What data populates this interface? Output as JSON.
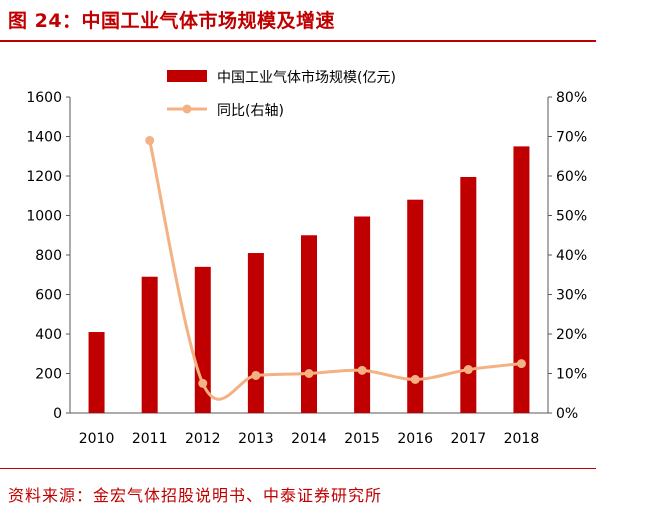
{
  "figure": {
    "title": "图 24：中国工业气体市场规模及增速",
    "source": "资料来源：金宏气体招股说明书、中泰证券研究所"
  },
  "chart_data": {
    "type": "bar",
    "categories": [
      "2010",
      "2011",
      "2012",
      "2013",
      "2014",
      "2015",
      "2016",
      "2017",
      "2018"
    ],
    "series": [
      {
        "name": "中国工业气体市场规模(亿元)",
        "type": "bar",
        "axis": "left",
        "color": "#c00000",
        "values": [
          410,
          690,
          740,
          810,
          900,
          995,
          1080,
          1195,
          1350
        ]
      },
      {
        "name": "同比(右轴)",
        "type": "line",
        "axis": "right",
        "color": "#f4b183",
        "values": [
          null,
          69,
          7.5,
          9.5,
          10,
          10.8,
          8.5,
          11,
          12.5
        ]
      }
    ],
    "y_left": {
      "min": 0,
      "max": 1600,
      "step": 200,
      "ticks": [
        "0",
        "200",
        "400",
        "600",
        "800",
        "1000",
        "1200",
        "1400",
        "1600"
      ]
    },
    "y_right": {
      "min": 0,
      "max": 80,
      "step": 10,
      "ticks": [
        "0%",
        "10%",
        "20%",
        "30%",
        "40%",
        "50%",
        "60%",
        "70%",
        "80%"
      ]
    },
    "legend": {
      "position": "top-center"
    },
    "grid": false
  }
}
